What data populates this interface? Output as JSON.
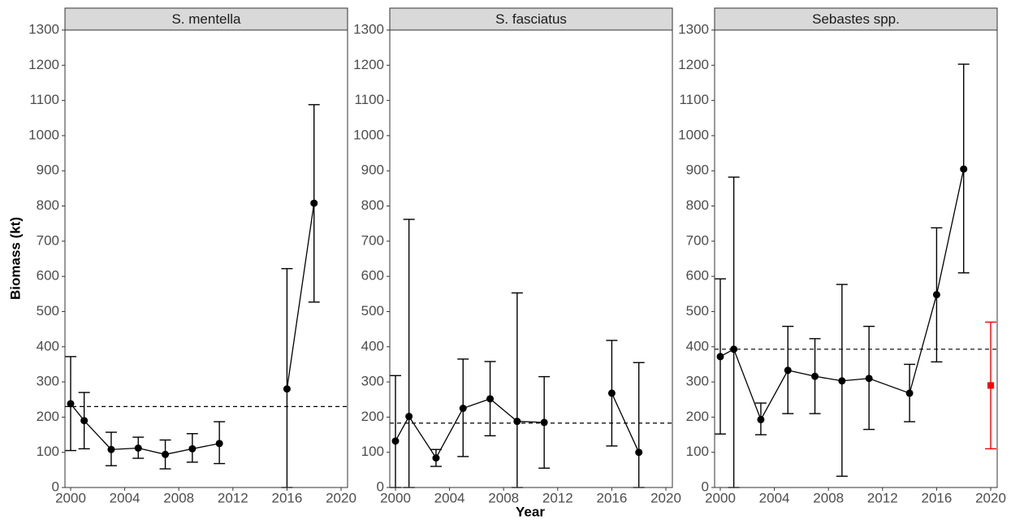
{
  "ylabel": "Biomass (kt)",
  "xlabel": "Year",
  "chart_data": [
    {
      "type": "line",
      "title": "S. mentella",
      "x": [
        2000,
        2001,
        2003,
        2005,
        2007,
        2009,
        2011,
        2014,
        2016,
        2018
      ],
      "series": [
        {
          "color": "#000000",
          "marker": "circle",
          "values": [
            238,
            190,
            108,
            112,
            94,
            110,
            125,
            null,
            280,
            808
          ],
          "lower": [
            105,
            110,
            62,
            83,
            53,
            72,
            68,
            null,
            0,
            527
          ],
          "upper": [
            372,
            270,
            157,
            143,
            135,
            153,
            187,
            null,
            622,
            1088
          ]
        }
      ],
      "mean": 230,
      "xlim": [
        1999.58,
        2020.48
      ],
      "xticks": [
        2000,
        2004,
        2008,
        2012,
        2016,
        2020
      ],
      "ylim": [
        0,
        1300
      ],
      "yticks": [
        0,
        100,
        200,
        300,
        400,
        500,
        600,
        700,
        800,
        900,
        1000,
        1100,
        1200,
        1300
      ]
    },
    {
      "type": "line",
      "title": "S. fasciatus",
      "x": [
        2000,
        2001,
        2003,
        2005,
        2007,
        2009,
        2011,
        2014,
        2016,
        2018
      ],
      "series": [
        {
          "color": "#000000",
          "marker": "circle",
          "values": [
            132,
            202,
            84,
            225,
            252,
            188,
            185,
            null,
            268,
            100
          ],
          "lower": [
            0,
            0,
            60,
            88,
            147,
            0,
            55,
            null,
            118,
            0
          ],
          "upper": [
            318,
            762,
            108,
            365,
            358,
            553,
            315,
            null,
            418,
            355
          ]
        }
      ],
      "mean": 183,
      "xlim": [
        1999.58,
        2020.48
      ],
      "xticks": [
        2000,
        2004,
        2008,
        2012,
        2016,
        2020
      ],
      "ylim": [
        0,
        1300
      ],
      "yticks": [
        0,
        100,
        200,
        300,
        400,
        500,
        600,
        700,
        800,
        900,
        1000,
        1100,
        1200,
        1300
      ]
    },
    {
      "type": "line",
      "title": "Sebastes spp.",
      "x": [
        2000,
        2001,
        2003,
        2005,
        2007,
        2009,
        2011,
        2014,
        2016,
        2018
      ],
      "series": [
        {
          "color": "#000000",
          "marker": "circle",
          "values": [
            372,
            393,
            193,
            333,
            316,
            303,
            310,
            268,
            548,
            905
          ],
          "lower": [
            152,
            0,
            150,
            210,
            210,
            32,
            165,
            187,
            357,
            610
          ],
          "upper": [
            593,
            882,
            240,
            458,
            423,
            577,
            458,
            350,
            738,
            1203
          ]
        },
        {
          "color": "#ff0000",
          "marker": "square",
          "x": [
            2020
          ],
          "values": [
            290
          ],
          "lower": [
            110
          ],
          "upper": [
            470
          ]
        }
      ],
      "mean": 393,
      "xlim": [
        1999.58,
        2020.48
      ],
      "xticks": [
        2000,
        2004,
        2008,
        2012,
        2016,
        2020
      ],
      "ylim": [
        0,
        1300
      ],
      "yticks": [
        0,
        100,
        200,
        300,
        400,
        500,
        600,
        700,
        800,
        900,
        1000,
        1100,
        1200,
        1300
      ]
    }
  ]
}
